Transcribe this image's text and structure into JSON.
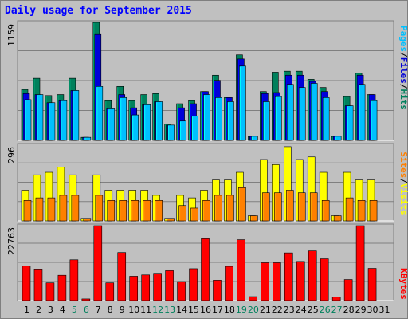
{
  "title": "Daily usage for September 2015",
  "colors": {
    "background": "#c0c0c0",
    "panel": "#c0c0c0",
    "hits": "#00805c",
    "files": "#0000d8",
    "pages": "#00c0ff",
    "visits": "#ffff00",
    "sites": "#ff8000",
    "kbytes": "#ff0000",
    "weekend_tick": "#00805c",
    "weekday_tick": "#000000"
  },
  "chart_data": [
    {
      "type": "bar",
      "panel": "top",
      "ymax_label": "1159",
      "ylim": [
        0,
        1159
      ],
      "legend_labels": [
        "Pages",
        "Files",
        "Hits"
      ],
      "categories": [
        "1",
        "2",
        "3",
        "4",
        "5",
        "6",
        "7",
        "8",
        "9",
        "10",
        "11",
        "12",
        "13",
        "14",
        "15",
        "16",
        "17",
        "18",
        "19",
        "20",
        "21",
        "22",
        "23",
        "24",
        "25",
        "26",
        "27",
        "28",
        "29",
        "30",
        "31"
      ],
      "series": [
        {
          "name": "Hits",
          "values": [
            500,
            610,
            440,
            450,
            610,
            30,
            1159,
            390,
            530,
            390,
            450,
            460,
            160,
            360,
            390,
            480,
            640,
            420,
            840,
            40,
            480,
            670,
            680,
            680,
            600,
            520,
            40,
            430,
            660,
            450,
            0
          ]
        },
        {
          "name": "Files",
          "values": [
            460,
            450,
            370,
            390,
            490,
            30,
            1040,
            310,
            450,
            320,
            350,
            380,
            150,
            320,
            360,
            480,
            590,
            420,
            800,
            40,
            460,
            470,
            640,
            640,
            580,
            480,
            40,
            340,
            640,
            450,
            0
          ]
        },
        {
          "name": "Pages",
          "values": [
            400,
            450,
            370,
            390,
            490,
            30,
            530,
            310,
            420,
            250,
            350,
            380,
            150,
            190,
            240,
            450,
            420,
            380,
            730,
            40,
            380,
            430,
            550,
            520,
            560,
            420,
            40,
            340,
            550,
            390,
            0
          ]
        }
      ]
    },
    {
      "type": "bar",
      "panel": "middle",
      "ymax_label": "296",
      "ylim": [
        0,
        296
      ],
      "legend_labels": [
        "Sites",
        "Visits"
      ],
      "categories": [
        "1",
        "2",
        "3",
        "4",
        "5",
        "6",
        "7",
        "8",
        "9",
        "10",
        "11",
        "12",
        "13",
        "14",
        "15",
        "16",
        "17",
        "18",
        "19",
        "20",
        "21",
        "22",
        "23",
        "24",
        "25",
        "26",
        "27",
        "28",
        "29",
        "30",
        "31"
      ],
      "series": [
        {
          "name": "Visits",
          "values": [
            120,
            180,
            190,
            210,
            180,
            10,
            180,
            120,
            120,
            120,
            120,
            100,
            10,
            100,
            90,
            120,
            160,
            160,
            190,
            20,
            240,
            220,
            290,
            240,
            250,
            190,
            20,
            190,
            160,
            160,
            0
          ]
        },
        {
          "name": "Sites",
          "values": [
            80,
            90,
            90,
            100,
            100,
            10,
            100,
            80,
            80,
            80,
            80,
            80,
            10,
            60,
            50,
            80,
            100,
            100,
            130,
            20,
            110,
            110,
            120,
            110,
            110,
            80,
            20,
            90,
            80,
            80,
            0
          ]
        }
      ]
    },
    {
      "type": "bar",
      "panel": "bottom",
      "ymax_label": "22763",
      "ylim": [
        0,
        22763
      ],
      "legend_labels": [
        "KBytes"
      ],
      "categories": [
        "1",
        "2",
        "3",
        "4",
        "5",
        "6",
        "7",
        "8",
        "9",
        "10",
        "11",
        "12",
        "13",
        "14",
        "15",
        "16",
        "17",
        "18",
        "19",
        "20",
        "21",
        "22",
        "23",
        "24",
        "25",
        "26",
        "27",
        "28",
        "29",
        "30",
        "31"
      ],
      "series": [
        {
          "name": "KBytes",
          "values": [
            10500,
            9600,
            5400,
            7700,
            12400,
            500,
            22763,
            5400,
            14600,
            7400,
            7800,
            8300,
            9100,
            5800,
            9700,
            18800,
            6200,
            10400,
            18500,
            1200,
            11500,
            11500,
            14500,
            11900,
            15100,
            12700,
            1100,
            6400,
            22763,
            9800,
            0
          ]
        }
      ]
    }
  ]
}
